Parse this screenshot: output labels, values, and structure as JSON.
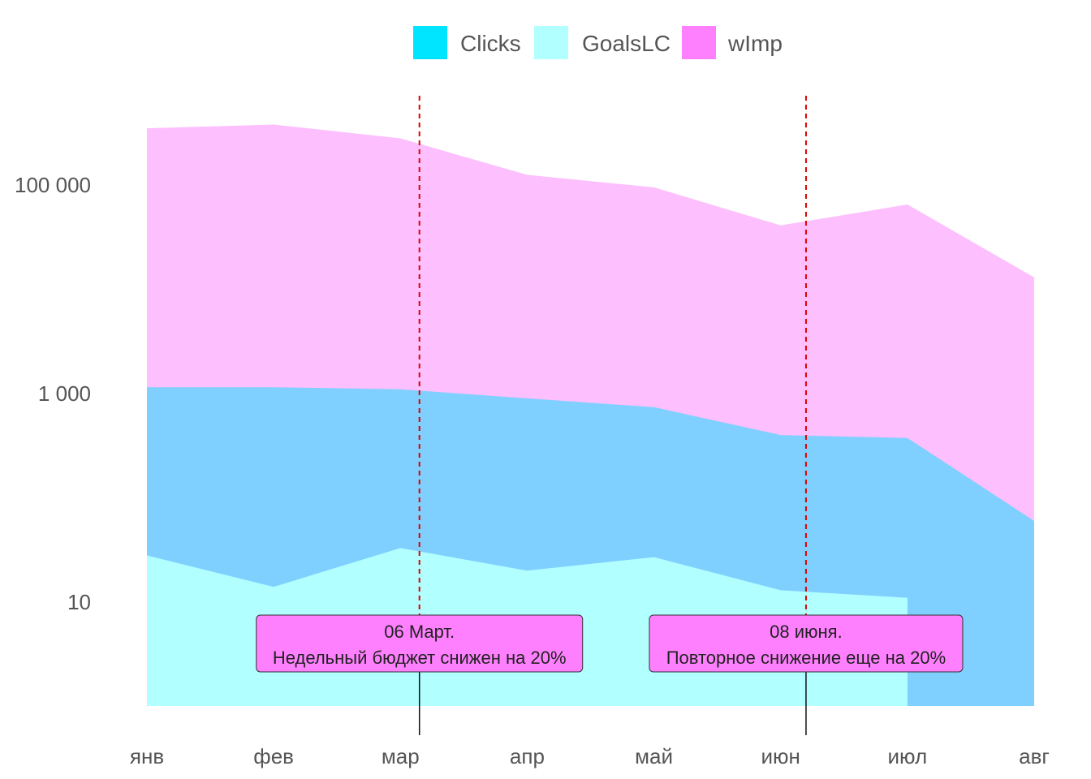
{
  "chart_data": {
    "type": "area",
    "x": [
      "янв",
      "фев",
      "мар",
      "апр",
      "май",
      "июн",
      "июл",
      "авг"
    ],
    "y_scale": "log",
    "ylim": [
      1,
      1000000
    ],
    "yticks": [
      10,
      1000,
      100000
    ],
    "ytick_labels": [
      "10",
      "1 000",
      "100 000"
    ],
    "xlabel": "",
    "ylabel": "",
    "title": "",
    "grid": false,
    "legend_position": "top",
    "series": [
      {
        "name": "Clicks",
        "color": "#00E5FF",
        "values": [
          1150,
          1150,
          1100,
          900,
          740,
          400,
          375,
          60
        ]
      },
      {
        "name": "GoalsLC",
        "color": "#B2FFFF",
        "values": [
          28,
          14,
          33,
          20,
          27,
          13,
          11,
          null
        ]
      },
      {
        "name": "wImp",
        "color": "#FF80FF",
        "values": [
          350000,
          380000,
          280000,
          125000,
          95000,
          41000,
          65000,
          13000
        ]
      }
    ],
    "annotations": [
      {
        "date_index": 2.15,
        "line_color": "#DD0000",
        "lines": [
          "06 Март.",
          "Недельный бюджет снижен на 20%"
        ]
      },
      {
        "date_index": 5.2,
        "line_color": "#DD0000",
        "lines": [
          "08 июня.",
          "Повторное снижение еще на 20%"
        ]
      }
    ]
  }
}
